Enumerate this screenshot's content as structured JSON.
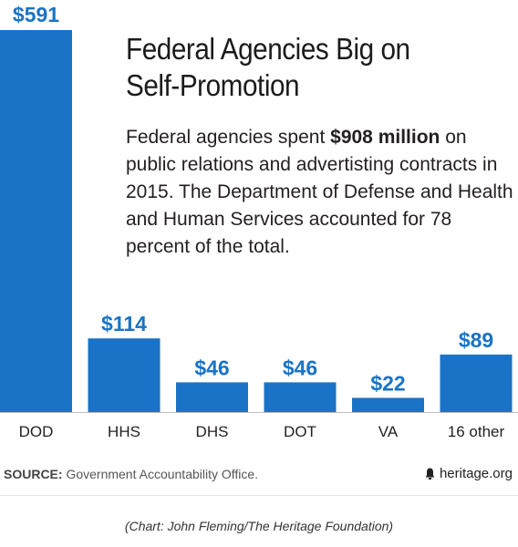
{
  "chart_data": {
    "type": "bar",
    "title_line1": "Federal Agencies Big on",
    "title_line2": "Self-Promotion",
    "subtitle": {
      "before": "Federal agencies spent ",
      "bold": "$908 million",
      "after": " on public relations and advertisting contracts in 2015. The Department of Defense and Health and Human Services accounted for 78 percent of the total."
    },
    "unit": "millions of dollars",
    "categories": [
      "DOD",
      "HHS",
      "DHS",
      "DOT",
      "VA",
      "16 other"
    ],
    "values": [
      591,
      114,
      46,
      46,
      22,
      89
    ],
    "data_labels": [
      "$591",
      "$114",
      "$46",
      "$46",
      "$22",
      "$89"
    ],
    "ylim": [
      0,
      591
    ],
    "grid": false,
    "legend": "none",
    "xlabel": "",
    "ylabel": "",
    "colors": {
      "bar": "#1a73c6",
      "label": "#1a73c6",
      "axis": "#bdbdbd"
    }
  },
  "footer": {
    "source_label": "SOURCE:",
    "source_text": " Government Accountability Office.",
    "brand": "heritage.org",
    "brand_icon": "bell-icon"
  },
  "caption": "(Chart: John Fleming/The Heritage Foundation)"
}
